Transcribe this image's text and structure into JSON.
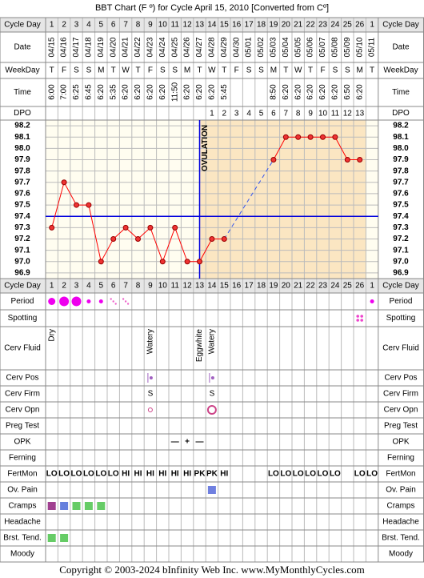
{
  "title": "BBT Chart (F º) for Cycle April 15, 2010  [Converted from Cº]",
  "footer": "Copyright © 2003-2024 bInfinity Web Inc.    www.MyMonthlyCycles.com",
  "labels": {
    "cycle_day": "Cycle Day",
    "date": "Date",
    "weekday": "WeekDay",
    "time": "Time",
    "dpo": "DPO",
    "period": "Period",
    "spotting": "Spotting",
    "cerv_fluid": "Cerv Fluid",
    "cerv_pos": "Cerv Pos",
    "cerv_firm": "Cerv Firm",
    "cerv_opn": "Cerv Opn",
    "preg_test": "Preg Test",
    "opk": "OPK",
    "ferning": "Ferning",
    "fertmon": "FertMon",
    "ov_pain": "Ov. Pain",
    "cramps": "Cramps",
    "headache": "Headache",
    "breast": "Brst. Tend.",
    "moody": "Moody"
  },
  "cycle_days": [
    1,
    2,
    3,
    4,
    5,
    6,
    7,
    8,
    9,
    10,
    11,
    12,
    13,
    14,
    15,
    16,
    17,
    18,
    19,
    20,
    21,
    22,
    23,
    24,
    25,
    26,
    1
  ],
  "dates": [
    "04/15",
    "04/16",
    "04/17",
    "04/18",
    "04/19",
    "04/20",
    "04/21",
    "04/22",
    "04/23",
    "04/24",
    "04/25",
    "04/26",
    "04/27",
    "04/28",
    "04/29",
    "04/30",
    "05/01",
    "05/02",
    "05/03",
    "05/04",
    "05/05",
    "05/06",
    "05/07",
    "05/08",
    "05/09",
    "05/10",
    "05/11"
  ],
  "weekdays": [
    "T",
    "F",
    "S",
    "S",
    "M",
    "T",
    "W",
    "T",
    "F",
    "S",
    "S",
    "M",
    "T",
    "W",
    "T",
    "F",
    "S",
    "S",
    "M",
    "T",
    "W",
    "T",
    "F",
    "S",
    "S",
    "M",
    "T"
  ],
  "times": [
    "6:00",
    "7:00",
    "6:25",
    "6:45",
    "6:20",
    "5:35",
    "6:20",
    "6:20",
    "6:20",
    "6:20",
    "11:50",
    "6:20",
    "6:20",
    "6:20",
    "5:45",
    null,
    null,
    null,
    "8:50",
    "6:20",
    "6:20",
    "6:20",
    "6:20",
    "6:20",
    "6:50",
    "6:20",
    null
  ],
  "dpo": [
    null,
    null,
    null,
    null,
    null,
    null,
    null,
    null,
    null,
    null,
    null,
    null,
    null,
    1,
    2,
    3,
    4,
    5,
    6,
    7,
    8,
    9,
    10,
    11,
    12,
    13,
    null
  ],
  "chart_data": {
    "type": "line",
    "values": [
      97.3,
      97.7,
      97.5,
      97.5,
      97.0,
      97.2,
      97.3,
      97.2,
      97.3,
      97.0,
      97.3,
      97.0,
      97.0,
      97.2,
      97.2,
      null,
      null,
      null,
      97.9,
      98.1,
      98.1,
      98.1,
      98.1,
      98.1,
      97.9,
      97.9,
      null
    ],
    "color": "#ff0000",
    "ylim": [
      96.85,
      98.25
    ],
    "yticks": [
      98.2,
      98.1,
      {
        "value": 98,
        "label": "98.0"
      },
      97.9,
      97.8,
      97.7,
      97.6,
      97.5,
      97.4,
      97.3,
      97.2,
      97.1,
      {
        "value": 97,
        "label": "97.0"
      },
      96.9
    ],
    "grid": true,
    "coverline": 97.4,
    "ovulation_label": "OVULATION",
    "ovulation_day": 13
  },
  "period": [
    "medium",
    "heavy",
    "heavy",
    "light",
    "light",
    "spot",
    "spot",
    null,
    null,
    null,
    null,
    null,
    null,
    null,
    null,
    null,
    null,
    null,
    null,
    null,
    null,
    null,
    null,
    null,
    null,
    null,
    "light"
  ],
  "spotting": [
    null,
    null,
    null,
    null,
    null,
    null,
    null,
    null,
    null,
    null,
    null,
    null,
    null,
    null,
    null,
    null,
    null,
    null,
    null,
    null,
    null,
    null,
    null,
    null,
    null,
    "spotting",
    null
  ],
  "cerv_fluid": [
    "Dry",
    null,
    null,
    null,
    null,
    null,
    null,
    null,
    "Watery",
    null,
    null,
    null,
    "Eggwhite",
    "Watery",
    null,
    null,
    null,
    null,
    null,
    null,
    null,
    null,
    null,
    null,
    null,
    null,
    null
  ],
  "cerv_pos": [
    null,
    null,
    null,
    null,
    null,
    null,
    null,
    null,
    "medium",
    null,
    null,
    null,
    null,
    "medium",
    null,
    null,
    null,
    null,
    null,
    null,
    null,
    null,
    null,
    null,
    null,
    null,
    null
  ],
  "cerv_firm": [
    null,
    null,
    null,
    null,
    null,
    null,
    null,
    null,
    "S",
    null,
    null,
    null,
    null,
    "S",
    null,
    null,
    null,
    null,
    null,
    null,
    null,
    null,
    null,
    null,
    null,
    null,
    null
  ],
  "cerv_opn": [
    null,
    null,
    null,
    null,
    null,
    null,
    null,
    null,
    "closed",
    null,
    null,
    null,
    null,
    "open",
    null,
    null,
    null,
    null,
    null,
    null,
    null,
    null,
    null,
    null,
    null,
    null,
    null
  ],
  "opk": [
    null,
    null,
    null,
    null,
    null,
    null,
    null,
    null,
    null,
    null,
    "—",
    "+",
    "—",
    null,
    null,
    null,
    null,
    null,
    null,
    null,
    null,
    null,
    null,
    null,
    null,
    null,
    null
  ],
  "fertmon": [
    "LO",
    "LO",
    "LO",
    "LO",
    "LO",
    "LO",
    "HI",
    "HI",
    "HI",
    "HI",
    "HI",
    "HI",
    "PK",
    "PK",
    "HI",
    null,
    null,
    null,
    "LO",
    "LO",
    "LO",
    "LO",
    "LO",
    "LO",
    null,
    "LO",
    "LO"
  ],
  "ov_pain": [
    null,
    null,
    null,
    null,
    null,
    null,
    null,
    null,
    null,
    null,
    null,
    null,
    null,
    "#7080e0",
    null,
    null,
    null,
    null,
    null,
    null,
    null,
    null,
    null,
    null,
    null,
    null,
    null
  ],
  "cramps": [
    "#a04090",
    "#6680dd",
    "#66cc66",
    "#66cc66",
    "#66cc66",
    null,
    null,
    null,
    null,
    null,
    null,
    null,
    null,
    null,
    null,
    null,
    null,
    null,
    null,
    null,
    null,
    null,
    null,
    null,
    null,
    null,
    null
  ],
  "breast": [
    "#66cc66",
    "#66cc66",
    null,
    null,
    null,
    null,
    null,
    null,
    null,
    null,
    null,
    null,
    null,
    null,
    null,
    null,
    null,
    null,
    null,
    null,
    null,
    null,
    null,
    null,
    null,
    null,
    null
  ]
}
